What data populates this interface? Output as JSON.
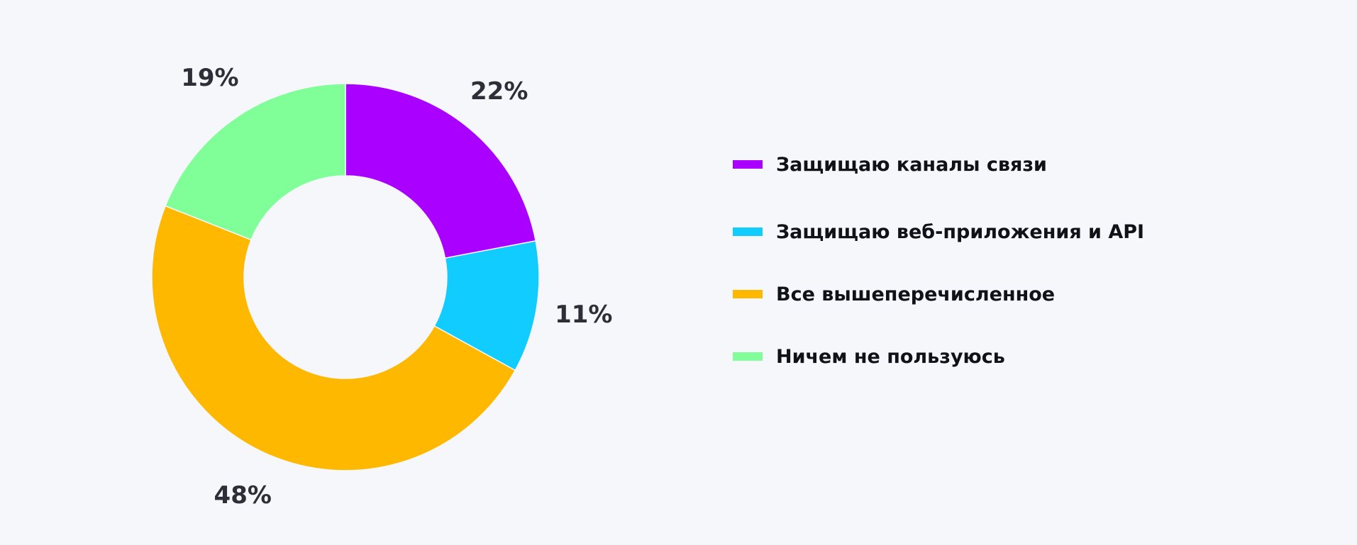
{
  "chart_data": {
    "type": "pie",
    "variant": "donut",
    "slices": [
      {
        "label": "Защищаю каналы связи",
        "value": 22,
        "display": "22%",
        "color": "#aa00ff"
      },
      {
        "label": "Защищаю веб-приложения и API",
        "value": 11,
        "display": "11%",
        "color": "#11ccff"
      },
      {
        "label": "Все вышеперечисленное",
        "value": 48,
        "display": "48%",
        "color": "#ffb800"
      },
      {
        "label": "Ничем не пользуюсь",
        "value": 19,
        "display": "19%",
        "color": "#80ff99"
      }
    ],
    "legend_position": "right"
  }
}
